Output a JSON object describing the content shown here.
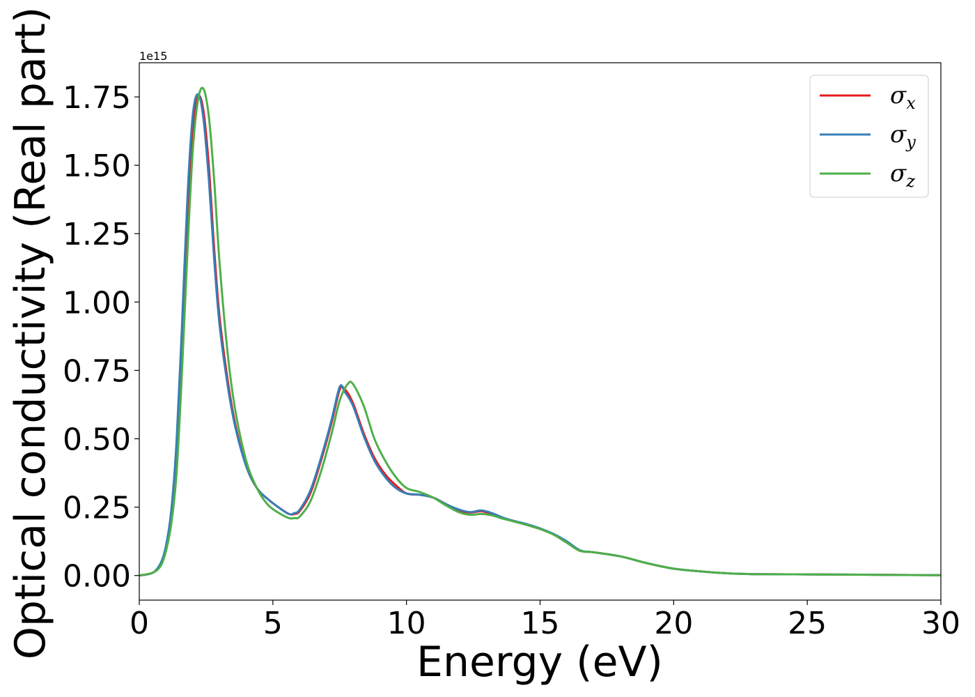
{
  "chart_data": {
    "type": "line",
    "xlabel": "Energy (eV)",
    "ylabel": "Optical conductivity (Real part)",
    "y_offset_label": "1e15",
    "xlim": [
      0,
      30
    ],
    "ylim": [
      -0.09,
      1.875
    ],
    "xticks": [
      0,
      5,
      10,
      15,
      20,
      25,
      30
    ],
    "xtick_labels": [
      "0",
      "5",
      "10",
      "15",
      "20",
      "25",
      "30"
    ],
    "yticks": [
      0.0,
      0.25,
      0.5,
      0.75,
      1.0,
      1.25,
      1.5,
      1.75
    ],
    "ytick_labels": [
      "0.00",
      "0.25",
      "0.50",
      "0.75",
      "1.00",
      "1.25",
      "1.50",
      "1.75"
    ],
    "grid": false,
    "legend_position": "top-right",
    "series": [
      {
        "name": "σx",
        "legend_base": "σ",
        "legend_sub": "x",
        "color": "#e41a1c",
        "x": [
          0,
          0.5,
          0.8,
          1.0,
          1.2,
          1.4,
          1.6,
          1.8,
          2.0,
          2.2,
          2.4,
          2.6,
          2.8,
          3.0,
          3.3,
          3.6,
          4.0,
          4.4,
          4.8,
          5.2,
          5.6,
          5.8,
          6.0,
          6.4,
          6.8,
          7.2,
          7.5,
          7.7,
          8.0,
          8.4,
          8.8,
          9.2,
          9.6,
          10.0,
          10.5,
          11.0,
          11.5,
          12.0,
          12.4,
          12.8,
          13.2,
          13.6,
          14.0,
          14.5,
          15.0,
          15.5,
          16.0,
          16.5,
          17.0,
          18.0,
          19.0,
          20.0,
          21.0,
          22.0,
          23.0,
          25.0,
          27.0,
          30.0
        ],
        "y": [
          0.0,
          0.01,
          0.04,
          0.1,
          0.22,
          0.45,
          0.85,
          1.3,
          1.62,
          1.75,
          1.7,
          1.5,
          1.2,
          0.95,
          0.72,
          0.55,
          0.4,
          0.32,
          0.28,
          0.25,
          0.225,
          0.225,
          0.235,
          0.3,
          0.42,
          0.56,
          0.68,
          0.68,
          0.63,
          0.52,
          0.43,
          0.37,
          0.33,
          0.3,
          0.295,
          0.285,
          0.26,
          0.235,
          0.23,
          0.235,
          0.225,
          0.21,
          0.2,
          0.185,
          0.17,
          0.15,
          0.12,
          0.09,
          0.085,
          0.07,
          0.045,
          0.025,
          0.015,
          0.008,
          0.005,
          0.004,
          0.003,
          0.001
        ]
      },
      {
        "name": "σy",
        "legend_base": "σ",
        "legend_sub": "y",
        "color": "#377eb8",
        "x": [
          0,
          0.5,
          0.8,
          1.0,
          1.2,
          1.4,
          1.6,
          1.8,
          2.0,
          2.2,
          2.4,
          2.6,
          2.8,
          3.0,
          3.3,
          3.6,
          4.0,
          4.4,
          4.8,
          5.2,
          5.6,
          5.8,
          6.0,
          6.4,
          6.8,
          7.2,
          7.5,
          7.7,
          8.0,
          8.4,
          8.8,
          9.2,
          9.6,
          10.0,
          10.5,
          11.0,
          11.5,
          12.0,
          12.4,
          12.8,
          13.2,
          13.6,
          14.0,
          14.5,
          15.0,
          15.5,
          16.0,
          16.5,
          17.0,
          18.0,
          19.0,
          20.0,
          21.0,
          22.0,
          23.0,
          25.0,
          27.0,
          30.0
        ],
        "y": [
          0.0,
          0.01,
          0.045,
          0.11,
          0.24,
          0.5,
          0.92,
          1.38,
          1.68,
          1.76,
          1.67,
          1.45,
          1.16,
          0.92,
          0.7,
          0.54,
          0.4,
          0.32,
          0.28,
          0.25,
          0.225,
          0.228,
          0.24,
          0.31,
          0.43,
          0.57,
          0.69,
          0.67,
          0.62,
          0.51,
          0.42,
          0.36,
          0.32,
          0.3,
          0.295,
          0.285,
          0.26,
          0.24,
          0.232,
          0.238,
          0.228,
          0.212,
          0.2,
          0.188,
          0.172,
          0.152,
          0.125,
          0.092,
          0.085,
          0.07,
          0.045,
          0.025,
          0.015,
          0.008,
          0.005,
          0.004,
          0.003,
          0.001
        ]
      },
      {
        "name": "σz",
        "legend_base": "σ",
        "legend_sub": "z",
        "color": "#4daf4a",
        "x": [
          0,
          0.5,
          0.8,
          1.0,
          1.2,
          1.4,
          1.6,
          1.8,
          2.0,
          2.2,
          2.4,
          2.6,
          2.8,
          3.0,
          3.3,
          3.6,
          4.0,
          4.4,
          4.8,
          5.2,
          5.6,
          5.8,
          6.0,
          6.4,
          6.8,
          7.2,
          7.5,
          7.8,
          8.0,
          8.4,
          8.8,
          9.2,
          9.6,
          10.0,
          10.5,
          11.0,
          11.5,
          12.0,
          12.4,
          12.8,
          13.2,
          13.6,
          14.0,
          14.5,
          15.0,
          15.5,
          16.0,
          16.5,
          17.0,
          18.0,
          19.0,
          20.0,
          21.0,
          22.0,
          23.0,
          25.0,
          27.0,
          30.0
        ],
        "y": [
          0.0,
          0.01,
          0.035,
          0.09,
          0.19,
          0.38,
          0.75,
          1.18,
          1.55,
          1.74,
          1.78,
          1.68,
          1.45,
          1.15,
          0.82,
          0.6,
          0.42,
          0.32,
          0.26,
          0.23,
          0.21,
          0.21,
          0.215,
          0.27,
          0.38,
          0.52,
          0.64,
          0.7,
          0.7,
          0.62,
          0.5,
          0.42,
          0.36,
          0.32,
          0.305,
          0.285,
          0.255,
          0.23,
          0.222,
          0.225,
          0.22,
          0.208,
          0.198,
          0.185,
          0.17,
          0.15,
          0.12,
          0.09,
          0.085,
          0.07,
          0.045,
          0.025,
          0.015,
          0.008,
          0.005,
          0.004,
          0.003,
          0.001
        ]
      }
    ]
  }
}
